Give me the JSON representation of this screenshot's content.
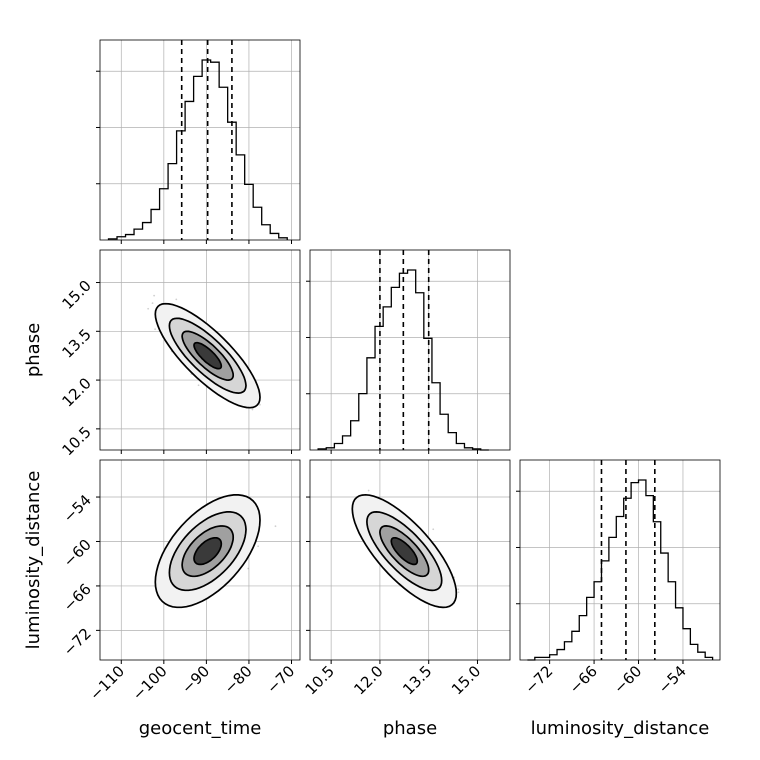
{
  "chart_data": {
    "type": "corner",
    "parameters": [
      "geocent_time",
      "phase",
      "luminosity_distance"
    ],
    "axis_labels": {
      "geocent_time": "geocent_time",
      "phase": "phase",
      "luminosity_distance": "luminosity_distance"
    },
    "ranges": {
      "geocent_time": [
        -115,
        -68
      ],
      "phase": [
        9.85,
        16.0
      ],
      "luminosity_distance": [
        -76.0,
        -49.0
      ]
    },
    "ticks": {
      "geocent_time": [
        -110,
        -100,
        -90,
        -80,
        -70
      ],
      "phase": [
        10.5,
        12.0,
        13.5,
        15.0
      ],
      "luminosity_distance": [
        -72,
        -66,
        -60,
        -54
      ]
    },
    "tick_labels": {
      "geocent_time": [
        "−110",
        "−100",
        "−90",
        "−80",
        "−70"
      ],
      "phase": [
        "10.5",
        "12.0",
        "13.5",
        "15.0"
      ],
      "luminosity_distance": [
        "−72",
        "−66",
        "−60",
        "−54"
      ]
    },
    "quantiles": {
      "geocent_time": [
        -95.8,
        -89.7,
        -84.0
      ],
      "phase": [
        12.0,
        12.72,
        13.5
      ],
      "luminosity_distance": [
        -65.0,
        -61.7,
        -57.8
      ]
    },
    "histograms": {
      "geocent_time": {
        "edges": [
          -113,
          -111,
          -109,
          -107,
          -105,
          -103,
          -101,
          -99,
          -97,
          -95,
          -93,
          -91,
          -89,
          -87,
          -85,
          -83,
          -81,
          -79,
          -77,
          -75,
          -73,
          -71
        ],
        "counts": [
          1,
          3,
          5,
          10,
          16,
          28,
          47,
          70,
          100,
          127,
          150,
          165,
          163,
          140,
          108,
          78,
          51,
          30,
          14,
          6,
          2
        ]
      },
      "phase": {
        "edges": [
          10.1,
          10.35,
          10.6,
          10.85,
          11.1,
          11.35,
          11.6,
          11.85,
          12.1,
          12.35,
          12.6,
          12.85,
          13.1,
          13.35,
          13.6,
          13.85,
          14.1,
          14.35,
          14.6,
          14.85,
          15.1,
          15.35
        ],
        "counts": [
          1,
          2,
          6,
          13,
          27,
          52,
          85,
          114,
          132,
          150,
          163,
          166,
          145,
          103,
          62,
          33,
          16,
          6,
          2,
          1,
          0
        ]
      },
      "luminosity_distance": {
        "edges": [
          -75,
          -74,
          -73,
          -72,
          -71,
          -70,
          -69,
          -68,
          -67,
          -66,
          -65,
          -64,
          -63,
          -62,
          -61,
          -60,
          -59,
          -58,
          -57,
          -56,
          -55,
          -54,
          -53,
          -52,
          -51,
          -50
        ],
        "counts": [
          0,
          1,
          1,
          2,
          4,
          7,
          11,
          17,
          24,
          30,
          38,
          47,
          55,
          62,
          68,
          69,
          63,
          53,
          41,
          30,
          20,
          12,
          6,
          3,
          1
        ]
      }
    },
    "pairs": [
      {
        "x": "geocent_time",
        "y": "phase",
        "correlation": -0.8,
        "mean": [
          -89.7,
          12.75
        ],
        "contour_halfwidths": [
          [
            3.2,
            0.4
          ],
          [
            6.0,
            0.75
          ],
          [
            9.0,
            1.15
          ],
          [
            12.3,
            1.6
          ]
        ]
      },
      {
        "x": "geocent_time",
        "y": "luminosity_distance",
        "correlation": 0.55,
        "mean": [
          -89.7,
          -61.3
        ],
        "contour_halfwidths": [
          [
            3.2,
            1.8
          ],
          [
            6.0,
            3.4
          ],
          [
            9.0,
            5.3
          ],
          [
            12.3,
            7.6
          ]
        ]
      },
      {
        "x": "phase",
        "y": "luminosity_distance",
        "correlation": -0.75,
        "mean": [
          12.75,
          -61.3
        ],
        "contour_halfwidths": [
          [
            0.4,
            1.8
          ],
          [
            0.75,
            3.4
          ],
          [
            1.15,
            5.3
          ],
          [
            1.6,
            7.6
          ]
        ]
      }
    ],
    "grid": true,
    "colors": {
      "line": "#000000",
      "grid": "#b0b0b0",
      "points": "#444444"
    }
  }
}
